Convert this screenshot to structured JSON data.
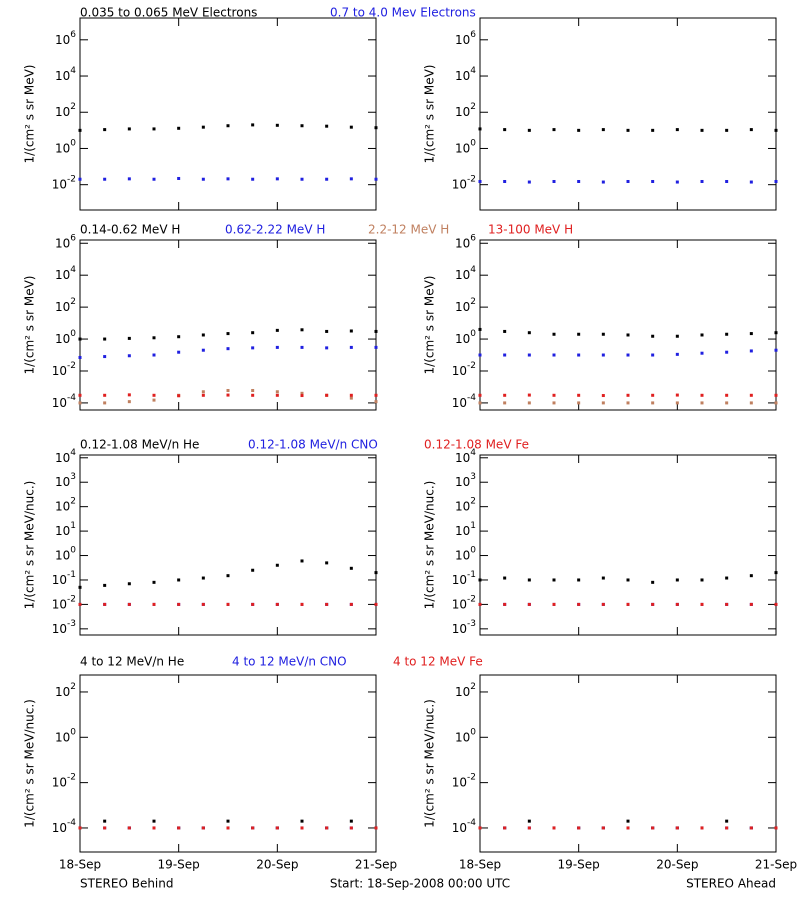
{
  "footer": {
    "left": "STEREO Behind",
    "center": "Start: 18-Sep-2008 00:00 UTC",
    "right": "STEREO Ahead"
  },
  "chart_data": [
    {
      "type": "scatter",
      "y_label": "1/(cm² s sr MeV)",
      "log_y": true,
      "xlim": [
        0,
        3
      ],
      "ylim": [
        0.0004,
        16000000
      ],
      "yticks": [
        {
          "value": 0.01,
          "label": "10^-2"
        },
        {
          "value": 1,
          "label": "10^0"
        },
        {
          "value": 100,
          "label": "10^2"
        },
        {
          "value": 10000,
          "label": "10^4"
        },
        {
          "value": 1000000,
          "label": "10^6"
        }
      ],
      "x": [
        0,
        0.25,
        0.5,
        0.75,
        1,
        1.25,
        1.5,
        1.75,
        2,
        2.25,
        2.5,
        2.75,
        3
      ],
      "series": [
        {
          "name": "0.035 to 0.065 MeV Electrons",
          "color": "#000000",
          "values": [
            10,
            11,
            12,
            12,
            13,
            15,
            18,
            20,
            19,
            18,
            17,
            15,
            14
          ]
        },
        {
          "name": "0.7 to 4.0 Mev Electrons",
          "color": "#2020e0",
          "values": [
            0.02,
            0.02,
            0.021,
            0.02,
            0.022,
            0.02,
            0.021,
            0.02,
            0.021,
            0.02,
            0.02,
            0.021,
            0.02
          ]
        }
      ]
    },
    {
      "type": "scatter",
      "y_label": "1/(cm² s sr MeV)",
      "log_y": true,
      "xlim": [
        0,
        3
      ],
      "ylim": [
        0.0004,
        16000000
      ],
      "yticks": [
        {
          "value": 0.01,
          "label": "10^-2"
        },
        {
          "value": 1,
          "label": "10^0"
        },
        {
          "value": 100,
          "label": "10^2"
        },
        {
          "value": 10000,
          "label": "10^4"
        },
        {
          "value": 1000000,
          "label": "10^6"
        }
      ],
      "x": [
        0,
        0.25,
        0.5,
        0.75,
        1,
        1.25,
        1.5,
        1.75,
        2,
        2.25,
        2.5,
        2.75,
        3
      ],
      "series": [
        {
          "color": "#000000",
          "values": [
            12,
            11,
            10,
            11,
            10,
            11,
            10,
            10,
            11,
            10,
            10,
            11,
            10
          ]
        },
        {
          "color": "#2020e0",
          "values": [
            0.015,
            0.015,
            0.014,
            0.015,
            0.015,
            0.014,
            0.015,
            0.015,
            0.014,
            0.015,
            0.015,
            0.014,
            0.015
          ]
        }
      ]
    },
    {
      "type": "scatter",
      "y_label": "1/(cm² s sr MeV)",
      "log_y": true,
      "xlim": [
        0,
        3
      ],
      "ylim": [
        3.6e-05,
        1600000
      ],
      "yticks": [
        {
          "value": 0.0001,
          "label": "10^-4"
        },
        {
          "value": 0.01,
          "label": "10^-2"
        },
        {
          "value": 1,
          "label": "10^0"
        },
        {
          "value": 100,
          "label": "10^2"
        },
        {
          "value": 10000,
          "label": "10^4"
        },
        {
          "value": 1000000,
          "label": "10^6"
        }
      ],
      "x": [
        0,
        0.25,
        0.5,
        0.75,
        1,
        1.25,
        1.5,
        1.75,
        2,
        2.25,
        2.5,
        2.75,
        3
      ],
      "series": [
        {
          "name": "0.14-0.62 MeV H",
          "color": "#000000",
          "values": [
            1,
            1,
            1.1,
            1.2,
            1.4,
            1.8,
            2.2,
            2.5,
            3.5,
            3.8,
            3,
            3.2,
            3
          ]
        },
        {
          "name": "0.62-2.22 MeV H",
          "color": "#2020e0",
          "values": [
            0.07,
            0.08,
            0.09,
            0.1,
            0.15,
            0.2,
            0.25,
            0.28,
            0.3,
            0.3,
            0.28,
            0.3,
            0.3
          ]
        },
        {
          "name": "2.2-12 MeV H",
          "color": "#c08060",
          "values": [
            0.0001,
            0.0001,
            0.00012,
            0.00015,
            0.0003,
            0.0005,
            0.0006,
            0.0006,
            0.0005,
            0.0004,
            0.0003,
            0.0002,
            0.00012
          ]
        },
        {
          "name": "13-100 MeV H",
          "color": "#e02020",
          "values": [
            0.0003,
            0.0003,
            0.00032,
            0.0003,
            0.00028,
            0.0003,
            0.00031,
            0.0003,
            0.0003,
            0.00029,
            0.0003,
            0.0003,
            0.0003
          ]
        }
      ]
    },
    {
      "type": "scatter",
      "y_label": "1/(cm² s sr MeV)",
      "log_y": true,
      "xlim": [
        0,
        3
      ],
      "ylim": [
        3.6e-05,
        1600000
      ],
      "yticks": [
        {
          "value": 0.0001,
          "label": "10^-4"
        },
        {
          "value": 0.01,
          "label": "10^-2"
        },
        {
          "value": 1,
          "label": "10^0"
        },
        {
          "value": 100,
          "label": "10^2"
        },
        {
          "value": 10000,
          "label": "10^4"
        },
        {
          "value": 1000000,
          "label": "10^6"
        }
      ],
      "x": [
        0,
        0.25,
        0.5,
        0.75,
        1,
        1.25,
        1.5,
        1.75,
        2,
        2.25,
        2.5,
        2.75,
        3
      ],
      "series": [
        {
          "color": "#000000",
          "values": [
            4,
            3,
            2.5,
            2,
            2,
            2,
            1.8,
            1.5,
            1.5,
            1.8,
            2,
            2.2,
            2.5
          ]
        },
        {
          "color": "#2020e0",
          "values": [
            0.1,
            0.1,
            0.1,
            0.1,
            0.1,
            0.1,
            0.1,
            0.1,
            0.11,
            0.13,
            0.15,
            0.18,
            0.2
          ]
        },
        {
          "color": "#c08060",
          "values": [
            0.0001,
            0.0001,
            0.0001,
            0.0001,
            0.0001,
            0.0001,
            0.0001,
            0.0001,
            0.0001,
            0.0001,
            0.0001,
            0.0001,
            0.0001
          ]
        },
        {
          "color": "#e02020",
          "values": [
            0.0003,
            0.0003,
            0.00031,
            0.0003,
            0.0003,
            0.00029,
            0.0003,
            0.0003,
            0.00031,
            0.0003,
            0.0003,
            0.0003,
            0.0003
          ]
        }
      ]
    },
    {
      "type": "scatter",
      "y_label": "1/(cm² s sr MeV/nuc.)",
      "log_y": true,
      "xlim": [
        0,
        3
      ],
      "ylim": [
        0.00056,
        13000
      ],
      "yticks": [
        {
          "value": 0.001,
          "label": "10^-3"
        },
        {
          "value": 0.01,
          "label": "10^-2"
        },
        {
          "value": 0.1,
          "label": "10^-1"
        },
        {
          "value": 1,
          "label": "10^0"
        },
        {
          "value": 10,
          "label": "10^1"
        },
        {
          "value": 100,
          "label": "10^2"
        },
        {
          "value": 1000,
          "label": "10^3"
        },
        {
          "value": 10000,
          "label": "10^4"
        }
      ],
      "x": [
        0,
        0.25,
        0.5,
        0.75,
        1,
        1.25,
        1.5,
        1.75,
        2,
        2.25,
        2.5,
        2.75,
        3
      ],
      "series": [
        {
          "name": "0.12-1.08 MeV/n He",
          "color": "#000000",
          "values": [
            0.05,
            0.06,
            0.07,
            0.08,
            0.1,
            0.12,
            0.15,
            0.25,
            0.4,
            0.6,
            0.5,
            0.3,
            0.2
          ]
        },
        {
          "name": "0.12-1.08 MeV/n CNO",
          "color": "#2020e0",
          "values": [
            0.01,
            0.01,
            0.01,
            0.01,
            0.01,
            0.01,
            0.01,
            0.01,
            0.01,
            0.01,
            0.01,
            0.01,
            0.01
          ]
        },
        {
          "name": "0.12-1.08 MeV Fe",
          "color": "#e02020",
          "values": [
            0.01,
            0.01,
            0.01,
            0.01,
            0.01,
            0.01,
            0.01,
            0.01,
            0.01,
            0.01,
            0.01,
            0.01,
            0.01
          ]
        }
      ]
    },
    {
      "type": "scatter",
      "y_label": "1/(cm² s sr MeV/nuc.)",
      "log_y": true,
      "xlim": [
        0,
        3
      ],
      "ylim": [
        0.00056,
        13000
      ],
      "yticks": [
        {
          "value": 0.001,
          "label": "10^-3"
        },
        {
          "value": 0.01,
          "label": "10^-2"
        },
        {
          "value": 0.1,
          "label": "10^-1"
        },
        {
          "value": 1,
          "label": "10^0"
        },
        {
          "value": 10,
          "label": "10^1"
        },
        {
          "value": 100,
          "label": "10^2"
        },
        {
          "value": 1000,
          "label": "10^3"
        },
        {
          "value": 10000,
          "label": "10^4"
        }
      ],
      "x": [
        0,
        0.25,
        0.5,
        0.75,
        1,
        1.25,
        1.5,
        1.75,
        2,
        2.25,
        2.5,
        2.75,
        3
      ],
      "series": [
        {
          "color": "#000000",
          "values": [
            0.1,
            0.12,
            0.1,
            0.1,
            0.1,
            0.12,
            0.1,
            0.08,
            0.1,
            0.1,
            0.12,
            0.15,
            0.2
          ]
        },
        {
          "color": "#2020e0",
          "values": [
            0.01,
            0.01,
            0.01,
            0.01,
            0.01,
            0.01,
            0.01,
            0.01,
            0.01,
            0.01,
            0.01,
            0.01,
            0.01
          ]
        },
        {
          "color": "#e02020",
          "values": [
            0.01,
            0.01,
            0.01,
            0.01,
            0.01,
            0.01,
            0.01,
            0.01,
            0.01,
            0.01,
            0.01,
            0.01,
            0.01
          ]
        }
      ]
    },
    {
      "type": "scatter",
      "y_label": "1/(cm² s sr MeV/nuc.)",
      "log_y": true,
      "xlim": [
        0,
        3
      ],
      "ylim": [
        8.7e-06,
        560
      ],
      "yticks": [
        {
          "value": 0.0001,
          "label": "10^-4"
        },
        {
          "value": 0.01,
          "label": "10^-2"
        },
        {
          "value": 1,
          "label": "10^0"
        },
        {
          "value": 100,
          "label": "10^2"
        }
      ],
      "xticks": [
        {
          "value": 0,
          "label": "18-Sep"
        },
        {
          "value": 1,
          "label": "19-Sep"
        },
        {
          "value": 2,
          "label": "20-Sep"
        },
        {
          "value": 3,
          "label": "21-Sep"
        }
      ],
      "x": [
        0,
        0.25,
        0.5,
        0.75,
        1,
        1.25,
        1.5,
        1.75,
        2,
        2.25,
        2.5,
        2.75,
        3
      ],
      "series": [
        {
          "name": "4 to 12 MeV/n He",
          "color": "#000000",
          "values": [
            0.0001,
            0.0002,
            0.0001,
            0.0002,
            0.0001,
            0.0001,
            0.0002,
            0.0001,
            0.0001,
            0.0002,
            0.0001,
            0.0002,
            0.0001
          ]
        },
        {
          "name": "4 to 12 MeV/n CNO",
          "color": "#2020e0",
          "values": [
            0.0001,
            0.0001,
            0.0001,
            0.0001,
            0.0001,
            0.0001,
            0.0001,
            0.0001,
            0.0001,
            0.0001,
            0.0001,
            0.0001,
            0.0001
          ]
        },
        {
          "name": "4 to 12 MeV Fe",
          "color": "#e02020",
          "values": [
            0.0001,
            0.0001,
            0.0001,
            0.0001,
            0.0001,
            0.0001,
            0.0001,
            0.0001,
            0.0001,
            0.0001,
            0.0001,
            0.0001,
            0.0001
          ]
        }
      ]
    },
    {
      "type": "scatter",
      "y_label": "1/(cm² s sr MeV/nuc.)",
      "log_y": true,
      "xlim": [
        0,
        3
      ],
      "ylim": [
        8.7e-06,
        560
      ],
      "yticks": [
        {
          "value": 0.0001,
          "label": "10^-4"
        },
        {
          "value": 0.01,
          "label": "10^-2"
        },
        {
          "value": 1,
          "label": "10^0"
        },
        {
          "value": 100,
          "label": "10^2"
        }
      ],
      "xticks": [
        {
          "value": 0,
          "label": "18-Sep"
        },
        {
          "value": 1,
          "label": "19-Sep"
        },
        {
          "value": 2,
          "label": "20-Sep"
        },
        {
          "value": 3,
          "label": "21-Sep"
        }
      ],
      "x": [
        0,
        0.25,
        0.5,
        0.75,
        1,
        1.25,
        1.5,
        1.75,
        2,
        2.25,
        2.5,
        2.75,
        3
      ],
      "series": [
        {
          "color": "#000000",
          "values": [
            0.0001,
            0.0001,
            0.0002,
            0.0001,
            0.0001,
            0.0001,
            0.0002,
            0.0001,
            0.0001,
            0.0001,
            0.0002,
            0.0001,
            0.0001
          ]
        },
        {
          "color": "#2020e0",
          "values": [
            0.0001,
            0.0001,
            0.0001,
            0.0001,
            0.0001,
            0.0001,
            0.0001,
            0.0001,
            0.0001,
            0.0001,
            0.0001,
            0.0001,
            0.0001
          ]
        },
        {
          "color": "#e02020",
          "values": [
            0.0001,
            0.0001,
            0.0001,
            0.0001,
            0.0001,
            0.0001,
            0.0001,
            0.0001,
            0.0001,
            0.0001,
            0.0001,
            0.0001,
            0.0001
          ]
        }
      ]
    }
  ]
}
